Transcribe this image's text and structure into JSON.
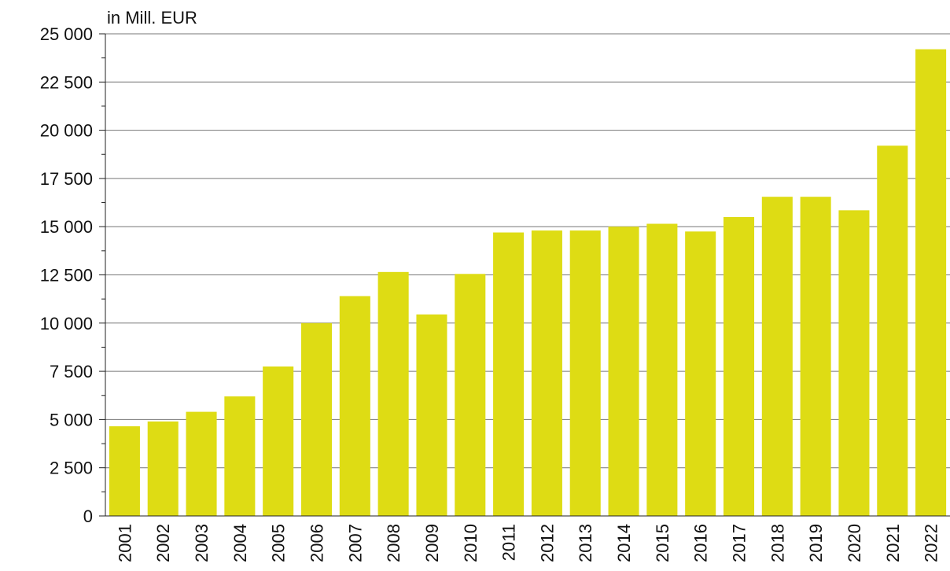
{
  "chart_data": {
    "type": "bar",
    "y_axis_label": "in Mill. EUR",
    "categories": [
      "2001",
      "2002",
      "2003",
      "2004",
      "2005",
      "2006",
      "2007",
      "2008",
      "2009",
      "2010",
      "2011",
      "2012",
      "2013",
      "2014",
      "2015",
      "2016",
      "2017",
      "2018",
      "2019",
      "2020",
      "2021",
      "2022"
    ],
    "values": [
      4650,
      4900,
      5400,
      6200,
      7750,
      10000,
      11400,
      12650,
      10450,
      12550,
      14700,
      14800,
      14800,
      15000,
      15150,
      14750,
      15500,
      16550,
      16550,
      15850,
      19200,
      24200
    ],
    "color": "#dedc14",
    "ylim": [
      0,
      25000
    ],
    "yticks": [
      0,
      {
        "value": 2500,
        "label": "2 500"
      },
      {
        "value": 5000,
        "label": "5 000"
      },
      {
        "value": 7500,
        "label": "7 500"
      },
      {
        "value": 10000,
        "label": "10 000"
      },
      {
        "value": 12500,
        "label": "12 500"
      },
      {
        "value": 15000,
        "label": "15 000"
      },
      {
        "value": 17500,
        "label": "17 500"
      },
      {
        "value": 20000,
        "label": "20 000"
      },
      {
        "value": 22500,
        "label": "22 500"
      },
      {
        "value": 25000,
        "label": "25 000"
      }
    ],
    "grid": true
  }
}
